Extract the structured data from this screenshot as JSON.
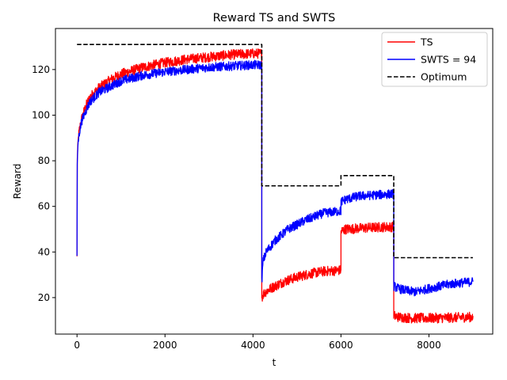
{
  "chart_data": {
    "type": "line",
    "title": "Reward TS and SWTS",
    "xlabel": "t",
    "ylabel": "Reward",
    "xlim": [
      -490,
      9450
    ],
    "ylim": [
      4,
      138
    ],
    "xticks": [
      0,
      2000,
      4000,
      6000,
      8000
    ],
    "yticks": [
      20,
      40,
      60,
      80,
      100,
      120
    ],
    "legend_position": "top-right",
    "series": [
      {
        "name": "TS",
        "color": "#ff0000",
        "style": "solid",
        "segments": [
          {
            "x": [
              0,
              5,
              20,
              50,
              100,
              200,
              300,
              500,
              800,
              1000,
              1500,
              2000,
              2500,
              3000,
              3500,
              4000,
              4200
            ],
            "y": [
              38,
              80,
              88,
              93,
              98,
              104,
              108,
              112,
              116,
              118,
              121,
              123,
              124.5,
              125.5,
              126.5,
              127,
              127
            ]
          },
          {
            "x": [
              4200,
              4250,
              4400,
              4700,
              5000,
              5300,
              5600,
              6000
            ],
            "y": [
              20,
              22,
              24,
              27,
              29,
              30.5,
              31.5,
              32
            ]
          },
          {
            "x": [
              6000,
              6100,
              6500,
              7000,
              7200
            ],
            "y": [
              49,
              50,
              50.5,
              51,
              51
            ]
          },
          {
            "x": [
              7200,
              7300,
              7600,
              8000,
              8500,
              9000
            ],
            "y": [
              12,
              11.5,
              11,
              11,
              11.2,
              11.5
            ]
          }
        ],
        "noise": 2.2
      },
      {
        "name": "SWTS = 94",
        "color": "#0000ff",
        "style": "solid",
        "segments": [
          {
            "x": [
              0,
              5,
              20,
              50,
              100,
              200,
              300,
              500,
              800,
              1000,
              1500,
              2000,
              2500,
              3000,
              3500,
              4000,
              4200
            ],
            "y": [
              38,
              78,
              87,
              92,
              97,
              102,
              106,
              110,
              113,
              115,
              117.5,
              119,
              120,
              121,
              121.5,
              122,
              122
            ]
          },
          {
            "x": [
              4200,
              4230,
              4300,
              4500,
              4800,
              5200,
              5600,
              6000
            ],
            "y": [
              27,
              36,
              40,
              45,
              50,
              54,
              57,
              58
            ]
          },
          {
            "x": [
              6000,
              6100,
              6400,
              6800,
              7200
            ],
            "y": [
              62,
              63,
              64.5,
              65,
              65.5
            ]
          },
          {
            "x": [
              7200,
              7300,
              7500,
              7700,
              8000,
              8500,
              9000
            ],
            "y": [
              25,
              24,
              23,
              22.5,
              24,
              26,
              27
            ]
          }
        ],
        "noise": 2.0
      },
      {
        "name": "Optimum",
        "color": "#000000",
        "style": "dashed",
        "segments": [
          {
            "x": [
              0,
              4200,
              4200,
              6000,
              6000,
              7200,
              7200,
              9000
            ],
            "y": [
              131,
              131,
              69,
              69,
              73.5,
              73.5,
              37.5,
              37.5
            ]
          }
        ],
        "noise": 0
      }
    ]
  }
}
